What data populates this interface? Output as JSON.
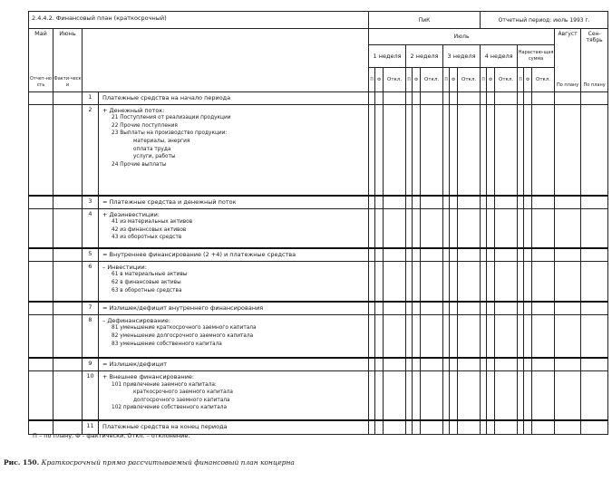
{
  "header": {
    "title": "2.4.4.2. Финансовый план (краткосрочный)",
    "pik": "ПиК",
    "report_period": "Отчетный период: июль 1993 г.",
    "may": {
      "label": "Май",
      "sub": "Отчет-ность"
    },
    "june": {
      "label": "Июнь",
      "sub": "Факти-чески"
    },
    "july": "Июль",
    "august": {
      "label": "Август",
      "sub": "По плану"
    },
    "september": {
      "label": "Сен-тябрь",
      "sub": "По плану"
    },
    "weeks": [
      "1 неделя",
      "2 неделя",
      "3 неделя",
      "4 неделя",
      "Нарастаю-щая сумма"
    ],
    "subcols": [
      "П",
      "Ф",
      "Откл."
    ]
  },
  "rows": [
    {
      "num": "1",
      "lines": [
        {
          "t": "Платежные средства на начало периода",
          "lvl": 0
        }
      ]
    },
    {
      "num": "2",
      "lines": [
        {
          "t": "+ Денежный поток:",
          "lvl": 0
        },
        {
          "t": "21  Поступления от реализации продукции",
          "lvl": 1
        },
        {
          "t": "22  Прочие поступления",
          "lvl": 1
        },
        {
          "t": "23  Выплаты на производство продукции:",
          "lvl": 1
        },
        {
          "t": "материалы, энергия",
          "lvl": 2
        },
        {
          "t": "оплата труда",
          "lvl": 2
        },
        {
          "t": "услуги, работы",
          "lvl": 2
        },
        {
          "t": "24  Прочие выплаты",
          "lvl": 1
        }
      ]
    },
    {
      "num": "3",
      "total": true,
      "lines": [
        {
          "t": "= Платежные средства и денежный  поток",
          "lvl": 0
        }
      ]
    },
    {
      "num": "4",
      "lines": [
        {
          "t": "+ Дезинвестиции:",
          "lvl": 0
        },
        {
          "t": "41  из материальных активов",
          "lvl": 1
        },
        {
          "t": "42  из финансовых активов",
          "lvl": 1
        },
        {
          "t": "43  из оборотных средств",
          "lvl": 1
        }
      ]
    },
    {
      "num": "5",
      "total": true,
      "lines": [
        {
          "t": "= Внутреннее финансирование (2 +4) и платежные средства",
          "lvl": 0
        }
      ]
    },
    {
      "num": "6",
      "lines": [
        {
          "t": "– Инвестиции:",
          "lvl": 0
        },
        {
          "t": "61  в материальные активы",
          "lvl": 1
        },
        {
          "t": "62  в финансовые активы",
          "lvl": 1
        },
        {
          "t": "63  в оборотные средства",
          "lvl": 1
        }
      ]
    },
    {
      "num": "7",
      "total": true,
      "lines": [
        {
          "t": "= Излишек/дефицит внутреннего финансирования",
          "lvl": 0
        }
      ]
    },
    {
      "num": "8",
      "lines": [
        {
          "t": "– Дефинансирование:",
          "lvl": 0
        },
        {
          "t": "81  уменьшение краткосрочного заемного капитала",
          "lvl": 1
        },
        {
          "t": "82  уменьшение долгосрочного заемного капитала",
          "lvl": 1
        },
        {
          "t": "83  уменьшение собственного капитала",
          "lvl": 1
        }
      ]
    },
    {
      "num": "9",
      "total": true,
      "lines": [
        {
          "t": "= Излишек/дефицит",
          "lvl": 0
        }
      ]
    },
    {
      "num": "10",
      "lines": [
        {
          "t": "+ Внешнее финансирование:",
          "lvl": 0
        },
        {
          "t": "101 привлечение заемного капитала:",
          "lvl": 1
        },
        {
          "t": "краткосрочного заемного капитала",
          "lvl": 2
        },
        {
          "t": "долгосрочного заемного капитала",
          "lvl": 2
        },
        {
          "t": "102 привлечение собственного капитала",
          "lvl": 1
        }
      ]
    },
    {
      "num": "11",
      "total": true,
      "lines": [
        {
          "t": "Платежные средства на конец периода",
          "lvl": 0
        }
      ]
    }
  ],
  "note": "П – по плану, Ф - фактически, Откл. – отклонение.",
  "caption": {
    "label": "Рис. 150.",
    "text": "Краткосрочный прямо рассчитываемый финансовый план концерна"
  }
}
